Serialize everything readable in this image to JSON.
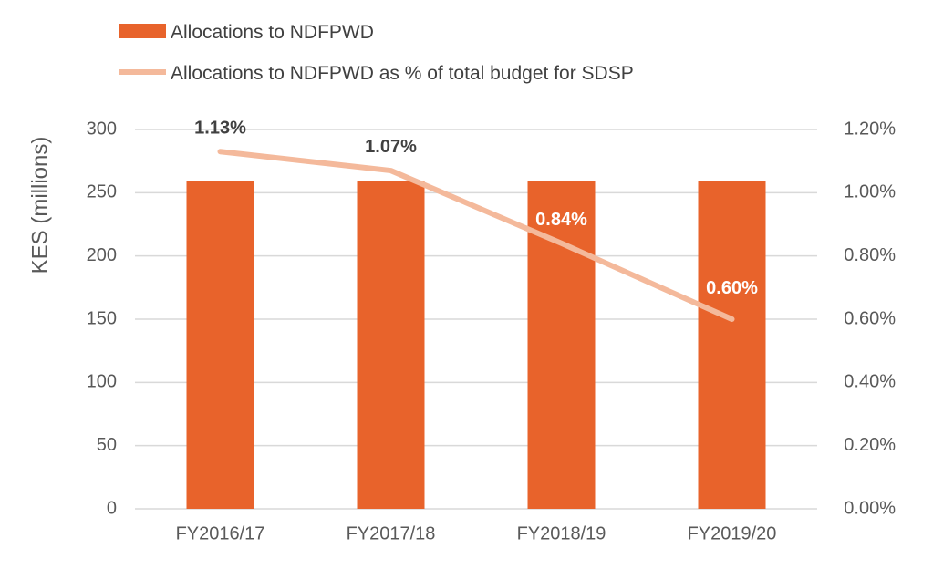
{
  "chart_data": {
    "type": "bar",
    "categories": [
      "FY2016/17",
      "FY2017/18",
      "FY2018/19",
      "FY2019/20"
    ],
    "series": [
      {
        "name": "Allocations to NDFPWD",
        "type": "bar",
        "axis": "left",
        "color": "#E8632B",
        "values": [
          259,
          259,
          259,
          259
        ]
      },
      {
        "name": "Allocations to NDFPWD as % of total budget for SDSP",
        "type": "line",
        "axis": "right",
        "color": "#F4B99B",
        "values": [
          1.13,
          1.07,
          0.84,
          0.6
        ],
        "data_labels": [
          "1.13%",
          "1.07%",
          "0.84%",
          "0.60%"
        ]
      }
    ],
    "ylabel": "KES (millions)",
    "ylim": [
      0,
      300
    ],
    "y_ticks": [
      "0",
      "50",
      "100",
      "150",
      "200",
      "250",
      "300"
    ],
    "y2lim": [
      0,
      1.2
    ],
    "y2_ticks": [
      "0.00%",
      "0.20%",
      "0.40%",
      "0.60%",
      "0.80%",
      "1.00%",
      "1.20%"
    ],
    "grid": true,
    "legend_position": "top-left"
  }
}
